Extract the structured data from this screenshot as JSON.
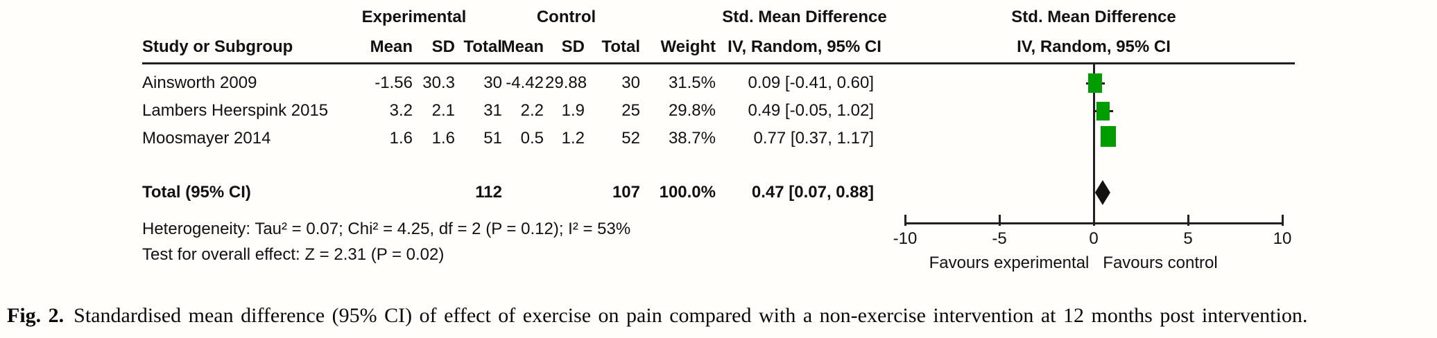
{
  "figure": {
    "table": {
      "group_headers": {
        "experimental": "Experimental",
        "control": "Control",
        "smd_text": "Std. Mean Difference",
        "smd_plot": "Std. Mean Difference"
      },
      "column_headers": {
        "study": "Study or Subgroup",
        "mean1": "Mean",
        "sd1": "SD",
        "total1": "Total",
        "mean2": "Mean",
        "sd2": "SD",
        "total2": "Total",
        "weight": "Weight",
        "ci_text": "IV, Random, 95% CI",
        "ci_plot": "IV, Random, 95% CI"
      },
      "rows": [
        {
          "study": "Ainsworth 2009",
          "mean1": "-1.56",
          "sd1": "30.3",
          "total1": "30",
          "mean2": "-4.42",
          "sd2": "29.88",
          "total2": "30",
          "weight": "31.5%",
          "ci": "0.09 [-0.41, 0.60]"
        },
        {
          "study": "Lambers Heerspink 2015",
          "mean1": "3.2",
          "sd1": "2.1",
          "total1": "31",
          "mean2": "2.2",
          "sd2": "1.9",
          "total2": "25",
          "weight": "29.8%",
          "ci": "0.49 [-0.05, 1.02]"
        },
        {
          "study": "Moosmayer 2014",
          "mean1": "1.6",
          "sd1": "1.6",
          "total1": "51",
          "mean2": "0.5",
          "sd2": "1.2",
          "total2": "52",
          "weight": "38.7%",
          "ci": "0.77 [0.37, 1.17]"
        }
      ],
      "total_row": {
        "label": "Total (95% CI)",
        "total1": "112",
        "total2": "107",
        "weight": "100.0%",
        "ci": "0.47 [0.07, 0.88]"
      },
      "heterogeneity": "Heterogeneity: Tau² = 0.07; Chi² = 4.25, df = 2 (P = 0.12); I² = 53%",
      "overall_effect": "Test for overall effect: Z = 2.31 (P = 0.02)"
    },
    "colors": {
      "square_green": "#009c00",
      "diamond_black": "#121212",
      "line_black": "#231f20"
    }
  },
  "caption": {
    "label": "Fig. 2.",
    "text": "Standardised mean difference (95% CI) of effect of exercise on pain compared with a non-exercise intervention at 12 months post intervention."
  },
  "chart_data": {
    "type": "forest",
    "title": "Std. Mean Difference — IV, Random, 95% CI",
    "xlim": [
      -10,
      10
    ],
    "xticks": [
      -10,
      -5,
      0,
      5,
      10
    ],
    "studies": [
      {
        "name": "Ainsworth 2009",
        "smd": 0.09,
        "ci_low": -0.41,
        "ci_high": 0.6,
        "weight_pct": 31.5
      },
      {
        "name": "Lambers Heerspink 2015",
        "smd": 0.49,
        "ci_low": -0.05,
        "ci_high": 1.02,
        "weight_pct": 29.8
      },
      {
        "name": "Moosmayer 2014",
        "smd": 0.77,
        "ci_low": 0.37,
        "ci_high": 1.17,
        "weight_pct": 38.7
      }
    ],
    "total": {
      "label": "Total (95% CI)",
      "smd": 0.47,
      "ci_low": 0.07,
      "ci_high": 0.88,
      "weight_pct": 100.0
    },
    "totals": {
      "experimental_n": 112,
      "control_n": 107
    },
    "heterogeneity": {
      "tau2": 0.07,
      "chi2": 4.25,
      "df": 2,
      "p": 0.12,
      "i2_pct": 53
    },
    "overall_effect": {
      "z": 2.31,
      "p": 0.02
    },
    "xlabel_left": "Favours experimental",
    "xlabel_right": "Favours control",
    "legend_position": "none",
    "grid": false
  }
}
